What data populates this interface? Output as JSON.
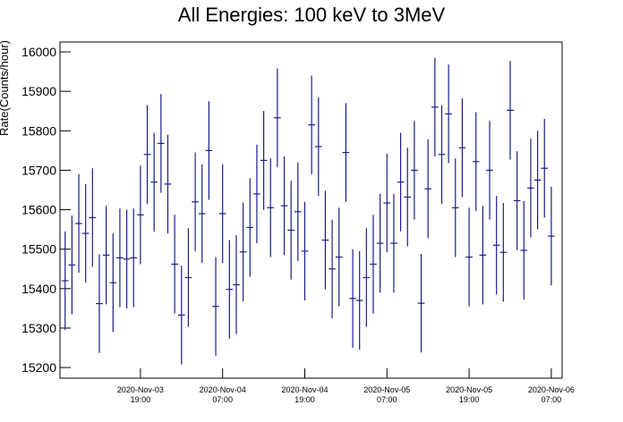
{
  "chart_data": {
    "type": "errorbar",
    "title": "All Energies:  100 keV to 3MeV",
    "ylabel": "Rate(Counts/hour)",
    "color": "#1c1c8a",
    "x": [
      "2020-Nov-03 08:00",
      "2020-Nov-03 09:00",
      "2020-Nov-03 10:00",
      "2020-Nov-03 11:00",
      "2020-Nov-03 12:00",
      "2020-Nov-03 13:00",
      "2020-Nov-03 14:00",
      "2020-Nov-03 15:00",
      "2020-Nov-03 16:00",
      "2020-Nov-03 17:00",
      "2020-Nov-03 18:00",
      "2020-Nov-03 19:00",
      "2020-Nov-03 20:00",
      "2020-Nov-03 21:00",
      "2020-Nov-03 22:00",
      "2020-Nov-03 23:00",
      "2020-Nov-04 00:00",
      "2020-Nov-04 01:00",
      "2020-Nov-04 02:00",
      "2020-Nov-04 03:00",
      "2020-Nov-04 04:00",
      "2020-Nov-04 05:00",
      "2020-Nov-04 06:00",
      "2020-Nov-04 07:00",
      "2020-Nov-04 08:00",
      "2020-Nov-04 09:00",
      "2020-Nov-04 10:00",
      "2020-Nov-04 11:00",
      "2020-Nov-04 12:00",
      "2020-Nov-04 13:00",
      "2020-Nov-04 14:00",
      "2020-Nov-04 15:00",
      "2020-Nov-04 16:00",
      "2020-Nov-04 17:00",
      "2020-Nov-04 18:00",
      "2020-Nov-04 19:00",
      "2020-Nov-04 20:00",
      "2020-Nov-04 21:00",
      "2020-Nov-04 22:00",
      "2020-Nov-04 23:00",
      "2020-Nov-05 00:00",
      "2020-Nov-05 01:00",
      "2020-Nov-05 02:00",
      "2020-Nov-05 03:00",
      "2020-Nov-05 04:00",
      "2020-Nov-05 05:00",
      "2020-Nov-05 06:00",
      "2020-Nov-05 07:00",
      "2020-Nov-05 08:00",
      "2020-Nov-05 09:00",
      "2020-Nov-05 10:00",
      "2020-Nov-05 11:00",
      "2020-Nov-05 12:00",
      "2020-Nov-05 13:00",
      "2020-Nov-05 14:00",
      "2020-Nov-05 15:00",
      "2020-Nov-05 16:00",
      "2020-Nov-05 17:00",
      "2020-Nov-05 18:00",
      "2020-Nov-05 19:00",
      "2020-Nov-05 20:00",
      "2020-Nov-05 21:00",
      "2020-Nov-05 22:00",
      "2020-Nov-05 23:00",
      "2020-Nov-06 00:00",
      "2020-Nov-06 01:00",
      "2020-Nov-06 02:00",
      "2020-Nov-06 03:00",
      "2020-Nov-06 04:00",
      "2020-Nov-06 05:00",
      "2020-Nov-06 06:00",
      "2020-Nov-06 07:00"
    ],
    "values": [
      15420,
      15460,
      15565,
      15540,
      15580,
      15362,
      15485,
      15415,
      15478,
      15475,
      15478,
      15587,
      15740,
      15670,
      15768,
      15665,
      15462,
      15333,
      15428,
      15620,
      15590,
      15750,
      15355,
      15590,
      15398,
      15410,
      15493,
      15555,
      15640,
      15725,
      15605,
      15833,
      15610,
      15548,
      15595,
      15495,
      15815,
      15760,
      15523,
      15450,
      15480,
      15745,
      15375,
      15370,
      15428,
      15462,
      15515,
      15617,
      15515,
      15670,
      15632,
      15700,
      15363,
      15653,
      15860,
      15740,
      15843,
      15605,
      15757,
      15480,
      15722,
      15485,
      15700,
      15510,
      15492,
      15852,
      15623,
      15497,
      15655,
      15675,
      15705,
      15533
    ],
    "errors": [
      125,
      125,
      125,
      125,
      125,
      125,
      125,
      125,
      125,
      125,
      125,
      125,
      125,
      125,
      125,
      125,
      125,
      125,
      125,
      125,
      125,
      125,
      125,
      125,
      125,
      125,
      125,
      125,
      125,
      125,
      125,
      125,
      125,
      125,
      125,
      125,
      125,
      125,
      125,
      125,
      125,
      125,
      125,
      125,
      125,
      125,
      125,
      125,
      125,
      125,
      125,
      125,
      125,
      125,
      125,
      125,
      125,
      125,
      125,
      125,
      125,
      125,
      125,
      125,
      125,
      125,
      125,
      125,
      125,
      125,
      125,
      125
    ],
    "xlim": [
      "2020-Nov-03 07:15",
      "2020-Nov-06 08:35"
    ],
    "xticks": [
      "2020-Nov-03 19:00",
      "2020-Nov-04 07:00",
      "2020-Nov-04 19:00",
      "2020-Nov-05 07:00",
      "2020-Nov-05 19:00",
      "2020-Nov-06 07:00"
    ],
    "ylim": [
      15173,
      16025
    ],
    "yticks": [
      15200,
      15300,
      15400,
      15500,
      15600,
      15700,
      15800,
      15900,
      16000
    ]
  }
}
